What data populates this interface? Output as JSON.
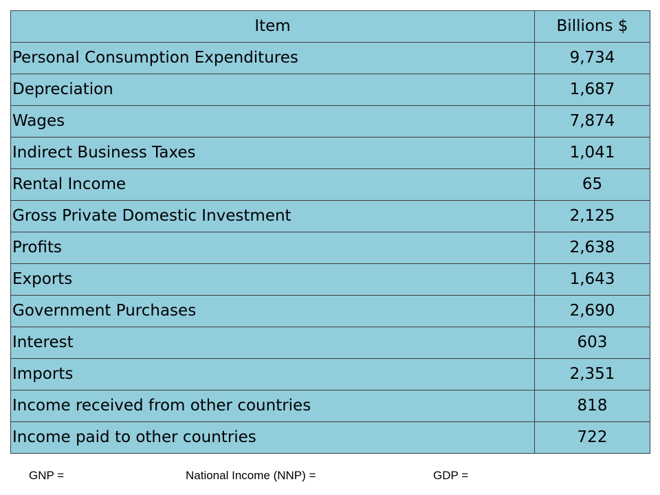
{
  "table": {
    "headers": [
      "Item",
      "Billions $"
    ],
    "rows": [
      {
        "item": "Personal Consumption Expenditures",
        "value": "9,734"
      },
      {
        "item": "Depreciation",
        "value": "1,687"
      },
      {
        "item": "Wages",
        "value": "7,874"
      },
      {
        "item": "Indirect Business Taxes",
        "value": "1,041"
      },
      {
        "item": "Rental Income",
        "value": "65"
      },
      {
        "item": "Gross Private Domestic Investment",
        "value": "2,125"
      },
      {
        "item": "Profits",
        "value": "2,638"
      },
      {
        "item": "Exports",
        "value": "1,643"
      },
      {
        "item": "Government Purchases",
        "value": "2,690"
      },
      {
        "item": "Interest",
        "value": "603"
      },
      {
        "item": "Imports",
        "value": "2,351"
      },
      {
        "item": "Income received from other countries",
        "value": "818"
      },
      {
        "item": "Income paid to other countries",
        "value": "722"
      }
    ],
    "fill_color": "#92CDDC",
    "border_color": "#3d3d3d"
  },
  "footer": {
    "gnp_label": "GNP =",
    "nnp_label": "National Income (NNP) =",
    "gdp_label": "GDP ="
  }
}
